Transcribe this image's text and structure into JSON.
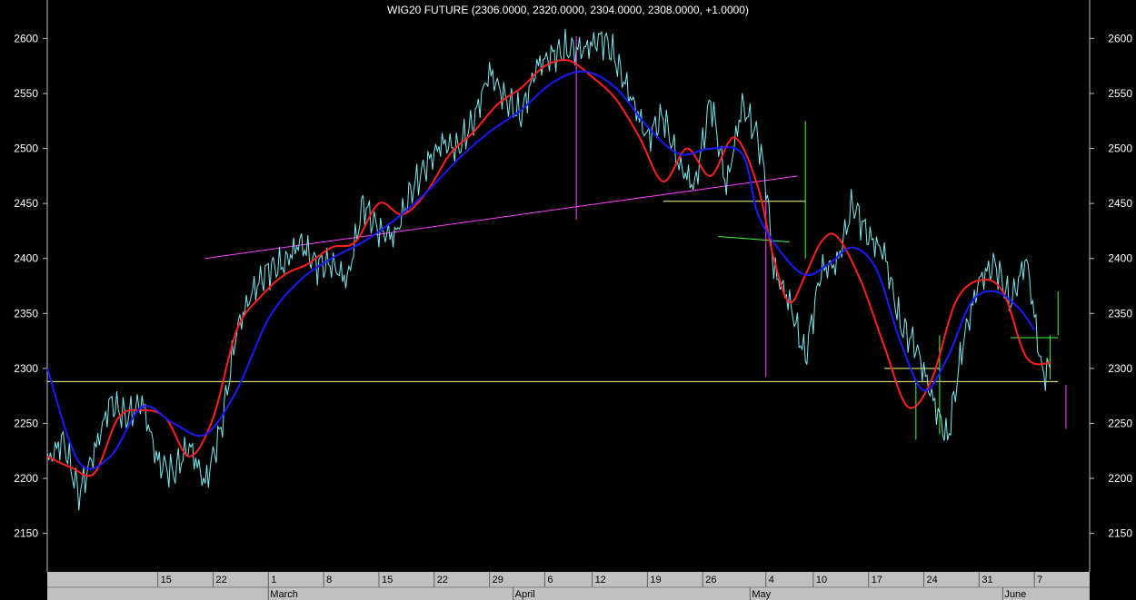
{
  "chart_data": {
    "type": "line",
    "title": "WIG20 FUTURE (2306.0000, 2320.0000, 2304.0000, 2308.0000, +1.0000)",
    "xlabel": "",
    "ylabel": "",
    "ylim": [
      2115,
      2635
    ],
    "yticks": [
      2150,
      2200,
      2250,
      2300,
      2350,
      2400,
      2450,
      2500,
      2550,
      2600
    ],
    "grid": false,
    "legend": "none",
    "day_ticks": [
      {
        "label": "15",
        "day": 14
      },
      {
        "label": "22",
        "day": 21
      },
      {
        "label": "1",
        "day": 28
      },
      {
        "label": "8",
        "day": 35
      },
      {
        "label": "15",
        "day": 42
      },
      {
        "label": "22",
        "day": 49
      },
      {
        "label": "29",
        "day": 56
      },
      {
        "label": "6",
        "day": 63
      },
      {
        "label": "12",
        "day": 69
      },
      {
        "label": "19",
        "day": 76
      },
      {
        "label": "26",
        "day": 83
      },
      {
        "label": "4",
        "day": 91
      },
      {
        "label": "10",
        "day": 97
      },
      {
        "label": "17",
        "day": 104
      },
      {
        "label": "24",
        "day": 111
      },
      {
        "label": "31",
        "day": 118
      },
      {
        "label": "7",
        "day": 125
      }
    ],
    "month_ticks": [
      {
        "label": "March",
        "day": 28
      },
      {
        "label": "April",
        "day": 59
      },
      {
        "label": "May",
        "day": 89
      },
      {
        "label": "June",
        "day": 121
      }
    ],
    "series": [
      {
        "color": "#7ee8f0",
        "role": "price",
        "x": [
          0,
          2,
          4,
          6,
          8,
          10,
          12,
          14,
          16,
          18,
          20,
          22,
          24,
          26,
          28,
          30,
          32,
          34,
          36,
          38,
          40,
          42,
          44,
          46,
          48,
          50,
          52,
          54,
          56,
          58,
          60,
          62,
          64,
          66,
          68,
          70,
          71,
          72,
          74,
          76,
          78,
          80,
          82,
          84,
          86,
          88,
          90,
          91,
          92,
          94,
          96,
          98,
          100,
          102,
          104,
          106,
          108,
          110,
          112,
          114,
          116,
          118,
          120,
          122,
          124,
          126,
          127
        ],
        "values": [
          2215,
          2235,
          2185,
          2225,
          2270,
          2255,
          2270,
          2215,
          2205,
          2230,
          2195,
          2245,
          2335,
          2370,
          2390,
          2395,
          2415,
          2395,
          2395,
          2380,
          2450,
          2425,
          2420,
          2460,
          2485,
          2505,
          2500,
          2525,
          2570,
          2545,
          2530,
          2575,
          2585,
          2590,
          2590,
          2600,
          2595,
          2580,
          2545,
          2510,
          2530,
          2485,
          2465,
          2545,
          2465,
          2540,
          2510,
          2470,
          2390,
          2360,
          2310,
          2390,
          2395,
          2450,
          2420,
          2405,
          2340,
          2320,
          2275,
          2235,
          2325,
          2380,
          2395,
          2360,
          2400,
          2295,
          2300
        ]
      },
      {
        "color": "#ff2020",
        "role": "fast-moving-average",
        "x": [
          0,
          3,
          6,
          9,
          12,
          15,
          18,
          21,
          24,
          27,
          30,
          33,
          36,
          39,
          42,
          45,
          48,
          51,
          54,
          57,
          60,
          63,
          66,
          69,
          72,
          75,
          78,
          81,
          84,
          87,
          90,
          92,
          94,
          96,
          98,
          100,
          103,
          106,
          109,
          112,
          115,
          118,
          121,
          124,
          127
        ],
        "values": [
          2220,
          2210,
          2205,
          2255,
          2262,
          2255,
          2220,
          2255,
          2335,
          2365,
          2385,
          2395,
          2410,
          2415,
          2450,
          2440,
          2460,
          2495,
          2515,
          2540,
          2555,
          2575,
          2580,
          2565,
          2545,
          2510,
          2470,
          2500,
          2475,
          2510,
          2465,
          2400,
          2360,
          2385,
          2415,
          2420,
          2380,
          2320,
          2265,
          2290,
          2360,
          2380,
          2370,
          2310,
          2305
        ]
      },
      {
        "color": "#1a1aff",
        "role": "slow-moving-average",
        "x": [
          0,
          4,
          8,
          12,
          16,
          20,
          24,
          28,
          32,
          36,
          40,
          44,
          48,
          52,
          56,
          60,
          64,
          68,
          72,
          76,
          80,
          84,
          88,
          90,
          93,
          96,
          99,
          102,
          105,
          108,
          111,
          114,
          117,
          120,
          123,
          125
        ],
        "values": [
          2300,
          2215,
          2220,
          2265,
          2250,
          2240,
          2280,
          2345,
          2380,
          2400,
          2415,
          2435,
          2460,
          2490,
          2515,
          2535,
          2560,
          2570,
          2555,
          2520,
          2495,
          2500,
          2495,
          2440,
          2405,
          2385,
          2395,
          2410,
          2390,
          2325,
          2280,
          2310,
          2360,
          2370,
          2355,
          2335
        ]
      }
    ],
    "annotations": [
      {
        "color": "#ff40ff",
        "type": "trendline",
        "points": [
          [
            20,
            2400
          ],
          [
            95,
            2475
          ]
        ]
      },
      {
        "color": "#ffff80",
        "type": "horizontal",
        "points": [
          [
            0,
            2288
          ],
          [
            128,
            2288
          ]
        ]
      },
      {
        "color": "#ffff80",
        "type": "horizontal",
        "points": [
          [
            78,
            2452
          ],
          [
            96,
            2452
          ]
        ]
      },
      {
        "color": "#ffff80",
        "type": "horizontal",
        "points": [
          [
            106,
            2300
          ],
          [
            113,
            2300
          ]
        ]
      },
      {
        "color": "#40ff40",
        "type": "horizontal",
        "points": [
          [
            85,
            2420
          ],
          [
            94,
            2415
          ]
        ]
      },
      {
        "color": "#40ff40",
        "type": "horizontal",
        "points": [
          [
            122,
            2328
          ],
          [
            128,
            2328
          ]
        ]
      },
      {
        "color": "#ff40ff",
        "type": "vertical",
        "points": [
          [
            67,
            2602
          ],
          [
            67,
            2435
          ]
        ]
      },
      {
        "color": "#ff40ff",
        "type": "vertical",
        "points": [
          [
            91,
            2460
          ],
          [
            91,
            2292
          ]
        ]
      },
      {
        "color": "#ff40ff",
        "type": "vertical",
        "points": [
          [
            129,
            2285
          ],
          [
            129,
            2245
          ]
        ]
      },
      {
        "color": "#40ff40",
        "type": "vertical",
        "points": [
          [
            96,
            2525
          ],
          [
            96,
            2400
          ]
        ]
      },
      {
        "color": "#40ff40",
        "type": "vertical",
        "points": [
          [
            113,
            2330
          ],
          [
            113,
            2240
          ]
        ]
      },
      {
        "color": "#40ff40",
        "type": "vertical",
        "points": [
          [
            110,
            2290
          ],
          [
            110,
            2235
          ]
        ]
      },
      {
        "color": "#40ff40",
        "type": "vertical",
        "points": [
          [
            127,
            2330
          ],
          [
            127,
            2290
          ]
        ]
      },
      {
        "color": "#40ff40",
        "type": "vertical",
        "points": [
          [
            128,
            2370
          ],
          [
            128,
            2330
          ]
        ]
      }
    ]
  }
}
